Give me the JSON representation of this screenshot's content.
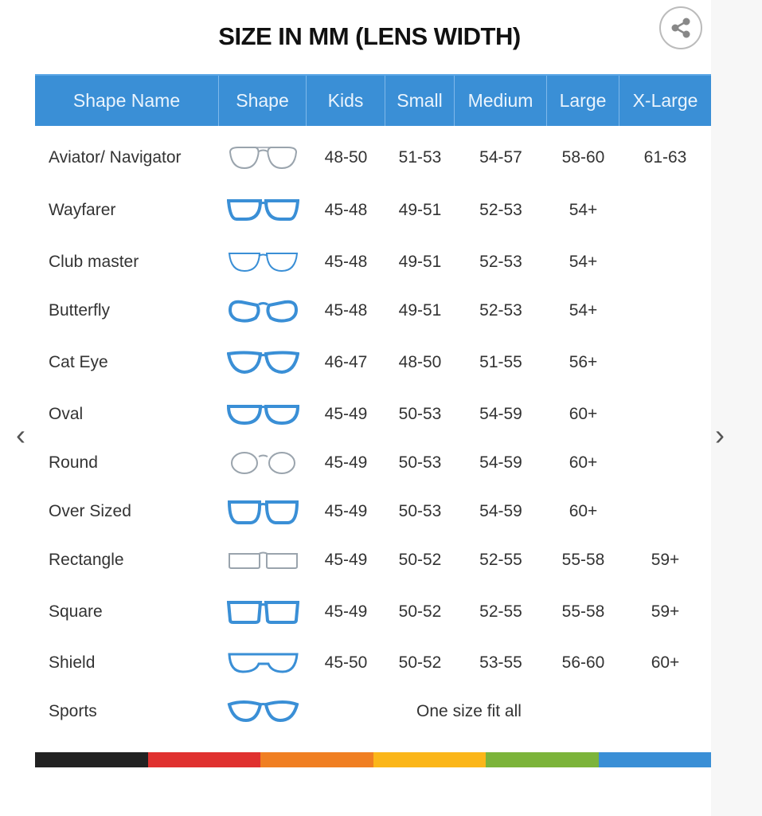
{
  "title": "SIZE IN MM (LENS WIDTH)",
  "share_icon": "share-icon",
  "header": [
    "Shape Name",
    "Shape",
    "Kids",
    "Small",
    "Medium",
    "Large",
    "X-Large"
  ],
  "header_color": "#3a8fd6",
  "rows": [
    {
      "name": "Aviator/ Navigator",
      "shape": "aviator",
      "style": "thin",
      "sizes": [
        "48-50",
        "51-53",
        "54-57",
        "58-60",
        "61-63"
      ]
    },
    {
      "name": "Wayfarer",
      "shape": "wayfarer",
      "style": "bold",
      "sizes": [
        "45-48",
        "49-51",
        "52-53",
        "54+",
        ""
      ]
    },
    {
      "name": "Club master",
      "shape": "clubmaster",
      "style": "half",
      "sizes": [
        "45-48",
        "49-51",
        "52-53",
        "54+",
        ""
      ]
    },
    {
      "name": "Butterfly",
      "shape": "butterfly",
      "style": "bold",
      "sizes": [
        "45-48",
        "49-51",
        "52-53",
        "54+",
        ""
      ]
    },
    {
      "name": "Cat Eye",
      "shape": "cateye",
      "style": "bold",
      "sizes": [
        "46-47",
        "48-50",
        "51-55",
        "56+",
        ""
      ]
    },
    {
      "name": "Oval",
      "shape": "oval",
      "style": "bold",
      "sizes": [
        "45-49",
        "50-53",
        "54-59",
        "60+",
        ""
      ]
    },
    {
      "name": "Round",
      "shape": "round",
      "style": "thin",
      "sizes": [
        "45-49",
        "50-53",
        "54-59",
        "60+",
        ""
      ]
    },
    {
      "name": "Over Sized",
      "shape": "oversized",
      "style": "bold",
      "sizes": [
        "45-49",
        "50-53",
        "54-59",
        "60+",
        ""
      ]
    },
    {
      "name": "Rectangle",
      "shape": "rectangle",
      "style": "thin",
      "sizes": [
        "45-49",
        "50-52",
        "52-55",
        "55-58",
        "59+"
      ]
    },
    {
      "name": "Square",
      "shape": "square",
      "style": "bold",
      "sizes": [
        "45-49",
        "50-52",
        "52-55",
        "55-58",
        "59+"
      ]
    },
    {
      "name": "Shield",
      "shape": "shield",
      "style": "mid",
      "sizes": [
        "45-50",
        "50-52",
        "53-55",
        "56-60",
        "60+"
      ]
    },
    {
      "name": "Sports",
      "shape": "sports",
      "style": "bold",
      "span_text": "One size fit all"
    }
  ],
  "color_bar": [
    "#222222",
    "#e0312f",
    "#f07f22",
    "#fbb619",
    "#7cb43a",
    "#3a8fd6"
  ],
  "nav": {
    "prev_icon": "chevron-left-icon",
    "next_icon": "chevron-right-icon"
  }
}
